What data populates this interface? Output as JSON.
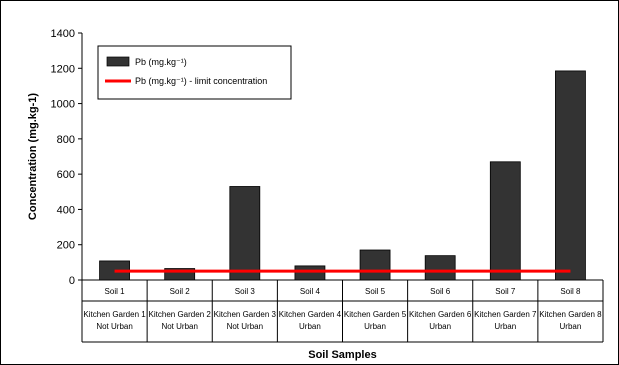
{
  "chart_data": {
    "type": "bar",
    "title": "",
    "xlabel": "Soil Samples",
    "ylabel": "Concentration (mg.kg-1)",
    "ylim": [
      0,
      1400
    ],
    "yticks": [
      "0",
      "200",
      "400",
      "600",
      "800",
      "1000",
      "1200",
      "1400"
    ],
    "categories": [
      {
        "soil": "Soil 1",
        "garden": "Kitchen Garden 1",
        "type": "Not Urban"
      },
      {
        "soil": "Soil 2",
        "garden": "Kitchen Garden 2",
        "type": "Not Urban"
      },
      {
        "soil": "Soil 3",
        "garden": "Kitchen Garden 3",
        "type": "Not Urban"
      },
      {
        "soil": "Soil 4",
        "garden": "Kitchen Garden 4",
        "type": "Urban"
      },
      {
        "soil": "Soil 5",
        "garden": "Kitchen Garden 5",
        "type": "Urban"
      },
      {
        "soil": "Soil 6",
        "garden": "Kitchen Garden 6",
        "type": "Urban"
      },
      {
        "soil": "Soil 7",
        "garden": "Kitchen Garden 7",
        "type": "Urban"
      },
      {
        "soil": "Soil 8",
        "garden": "Kitchen Garden 8",
        "type": "Urban"
      }
    ],
    "series": [
      {
        "name": "Pb (mg.kg⁻¹)",
        "kind": "bar",
        "color": "#333333",
        "values": [
          108,
          65,
          530,
          80,
          170,
          138,
          670,
          1185
        ]
      },
      {
        "name": "Pb (mg.kg⁻¹) - limit concentration",
        "kind": "line",
        "color": "#ff0000",
        "values": [
          50,
          50,
          50,
          50,
          50,
          50,
          50,
          50
        ]
      }
    ],
    "legend_position": "top-left",
    "grid": false
  }
}
